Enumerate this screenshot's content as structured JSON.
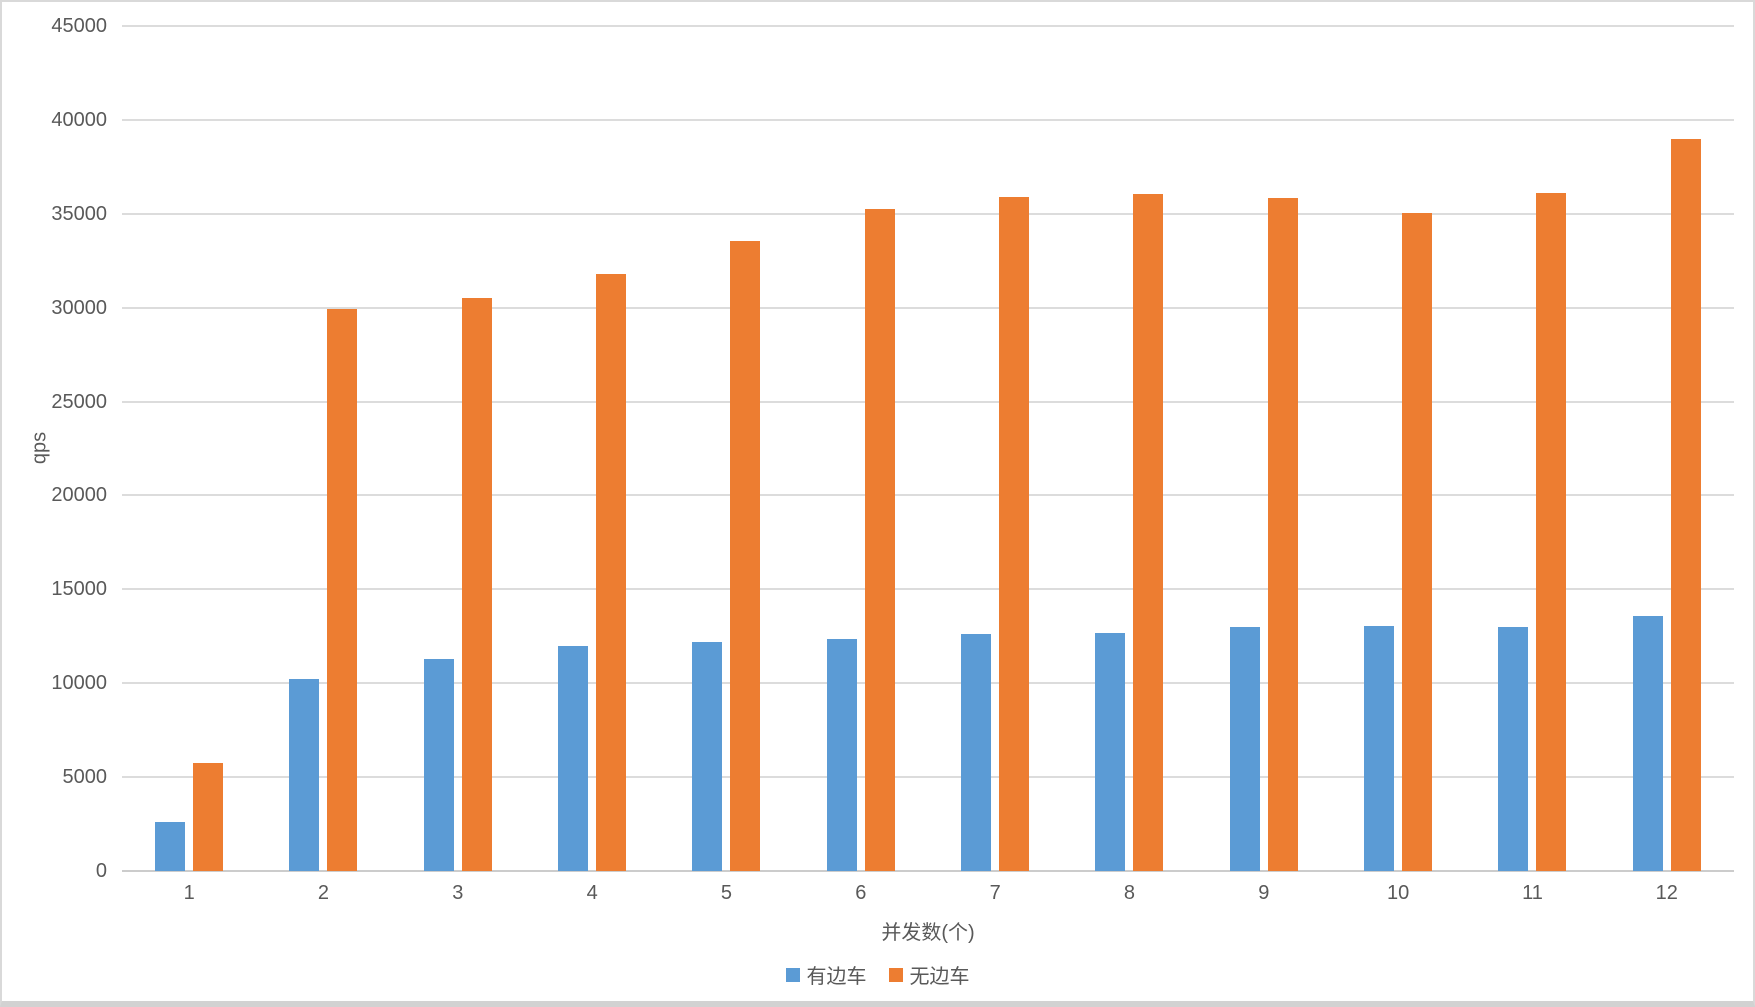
{
  "window": {
    "background": "#ffffff",
    "frame_color": "#d9d9d9"
  },
  "chart_data": {
    "type": "bar",
    "title": "",
    "xlabel": "并发数(个)",
    "ylabel": "qps",
    "categories": [
      "1",
      "2",
      "3",
      "4",
      "5",
      "6",
      "7",
      "8",
      "9",
      "10",
      "11",
      "12"
    ],
    "series": [
      {
        "key": "with-sidecar",
        "name": "有边车",
        "color": "#5B9BD5",
        "values": [
          2600,
          10200,
          11300,
          12000,
          12200,
          12350,
          12600,
          12700,
          13000,
          13050,
          13000,
          13600
        ]
      },
      {
        "key": "without-sidecar",
        "name": "无边车",
        "color": "#ED7D31",
        "values": [
          5750,
          29950,
          30500,
          31800,
          33550,
          35250,
          35900,
          36050,
          35850,
          35050,
          36100,
          39000
        ]
      }
    ],
    "ylim": [
      0,
      45000
    ],
    "yticks": [
      0,
      5000,
      10000,
      15000,
      20000,
      25000,
      30000,
      35000,
      40000,
      45000
    ],
    "grid": "horizontal",
    "legend_position": "bottom",
    "gridline_color": "#dcdcdc",
    "baseline_color": "#cccccc",
    "axis_text_color": "#595959"
  }
}
